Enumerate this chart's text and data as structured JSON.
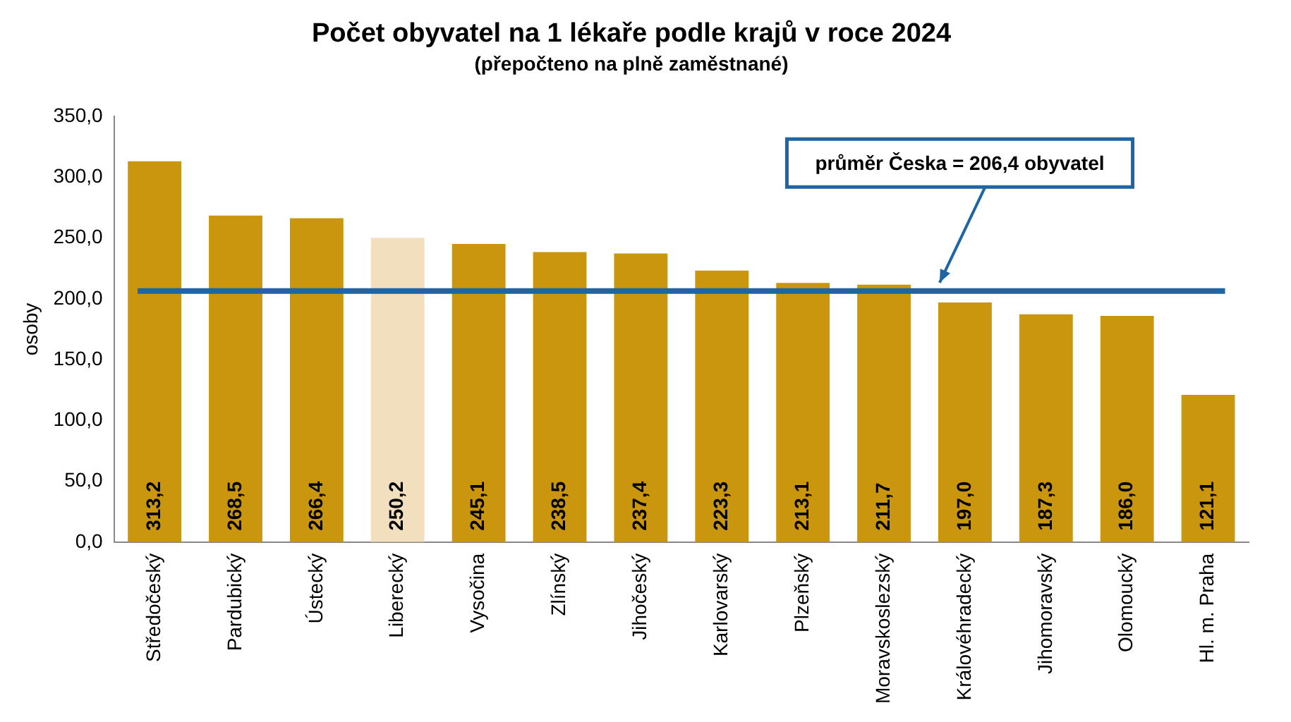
{
  "chart_data": {
    "type": "bar",
    "title": "Počet obyvatel na 1 lékaře podle krajů v roce 2024",
    "subtitle": "(přepočteno na plně zaměstnané)",
    "ylabel": "osoby",
    "categories": [
      "Středočeský",
      "Pardubický",
      "Ústecký",
      "Liberecký",
      "Vysočina",
      "Zlínský",
      "Jihočeský",
      "Karlovarský",
      "Plzeňský",
      "Moravskoslezský",
      "Královéhradecký",
      "Jihomoravský",
      "Olomoucký",
      "Hl. m. Praha"
    ],
    "values": [
      313.2,
      268.5,
      266.4,
      250.2,
      245.1,
      238.5,
      237.4,
      223.3,
      213.1,
      211.7,
      197.0,
      187.3,
      186.0,
      121.1
    ],
    "colors": [
      "#c9960e",
      "#c9960e",
      "#c9960e",
      "#f2dfbe",
      "#c9960e",
      "#c9960e",
      "#c9960e",
      "#c9960e",
      "#c9960e",
      "#c9960e",
      "#c9960e",
      "#c9960e",
      "#c9960e",
      "#c9960e"
    ],
    "value_labels": [
      "313,2",
      "268,5",
      "266,4",
      "250,2",
      "245,1",
      "238,5",
      "237,4",
      "223,3",
      "213,1",
      "211,7",
      "197,0",
      "187,3",
      "186,0",
      "121,1"
    ],
    "ylim": [
      0,
      350
    ],
    "yticks": [
      {
        "value": 0,
        "label": "0,0"
      },
      {
        "value": 50,
        "label": "50,0"
      },
      {
        "value": 100,
        "label": "100,0"
      },
      {
        "value": 150,
        "label": "150,0"
      },
      {
        "value": 200,
        "label": "200,0"
      },
      {
        "value": 250,
        "label": "250,0"
      },
      {
        "value": 300,
        "label": "300,0"
      },
      {
        "value": 350,
        "label": "350,0"
      }
    ],
    "ref_lines": [
      {
        "axis": "y",
        "value": 206.4,
        "label": "průměr Česka = 206,4 obyvatel",
        "color": "#1f65a3"
      }
    ],
    "grid": false,
    "legend": false
  }
}
